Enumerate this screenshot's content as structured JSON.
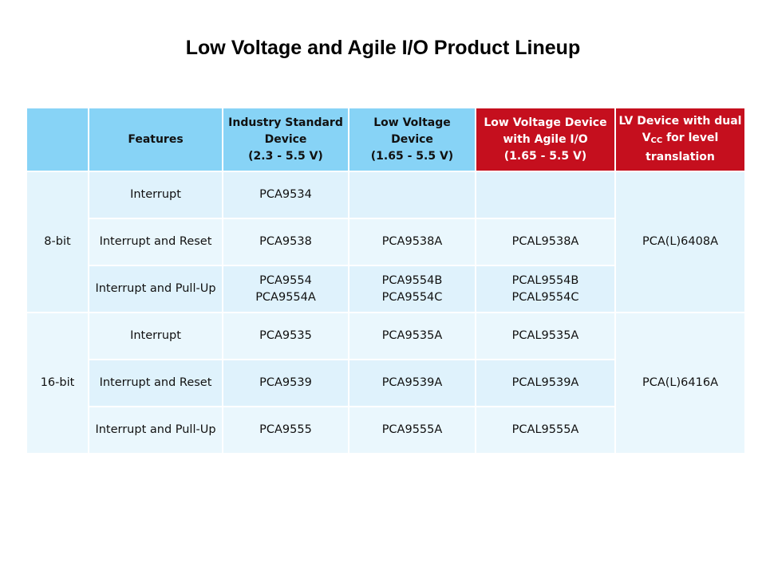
{
  "title": "Low Voltage and Agile I/O Product Lineup",
  "colors": {
    "header_blue": "#87d3f6",
    "header_red": "#c50f1e",
    "cell_light": "#dff2fc",
    "cell_lighter": "#eaf7fd"
  },
  "headers": {
    "blank": "",
    "features": "Features",
    "industry_standard": [
      "Industry Standard",
      "Device",
      "(2.3 - 5.5 V)"
    ],
    "low_voltage": [
      "Low Voltage Device",
      "(1.65 - 5.5 V)"
    ],
    "agile_io": [
      "Low Voltage Device",
      "with Agile I/O",
      "(1.65 - 5.5 V)"
    ],
    "lv_dual": {
      "line1": "LV Device with dual",
      "v": "V",
      "sub": "CC",
      "line2_rest": " for level",
      "line3": "translation"
    }
  },
  "groups": [
    {
      "label": "8-bit",
      "dual_device": "PCA(L)6408A",
      "rows": [
        {
          "feature": "Interrupt",
          "industry": [
            "PCA9534"
          ],
          "low_voltage": [],
          "agile": []
        },
        {
          "feature": "Interrupt and Reset",
          "industry": [
            "PCA9538"
          ],
          "low_voltage": [
            "PCA9538A"
          ],
          "agile": [
            "PCAL9538A"
          ]
        },
        {
          "feature": "Interrupt and Pull-Up",
          "industry": [
            "PCA9554",
            "PCA9554A"
          ],
          "low_voltage": [
            "PCA9554B",
            "PCA9554C"
          ],
          "agile": [
            "PCAL9554B",
            "PCAL9554C"
          ]
        }
      ]
    },
    {
      "label": "16-bit",
      "dual_device": "PCA(L)6416A",
      "rows": [
        {
          "feature": "Interrupt",
          "industry": [
            "PCA9535"
          ],
          "low_voltage": [
            "PCA9535A"
          ],
          "agile": [
            "PCAL9535A"
          ]
        },
        {
          "feature": "Interrupt and Reset",
          "industry": [
            "PCA9539"
          ],
          "low_voltage": [
            "PCA9539A"
          ],
          "agile": [
            "PCAL9539A"
          ]
        },
        {
          "feature": "Interrupt and Pull-Up",
          "industry": [
            "PCA9555"
          ],
          "low_voltage": [
            "PCA9555A"
          ],
          "agile": [
            "PCAL9555A"
          ]
        }
      ]
    }
  ]
}
